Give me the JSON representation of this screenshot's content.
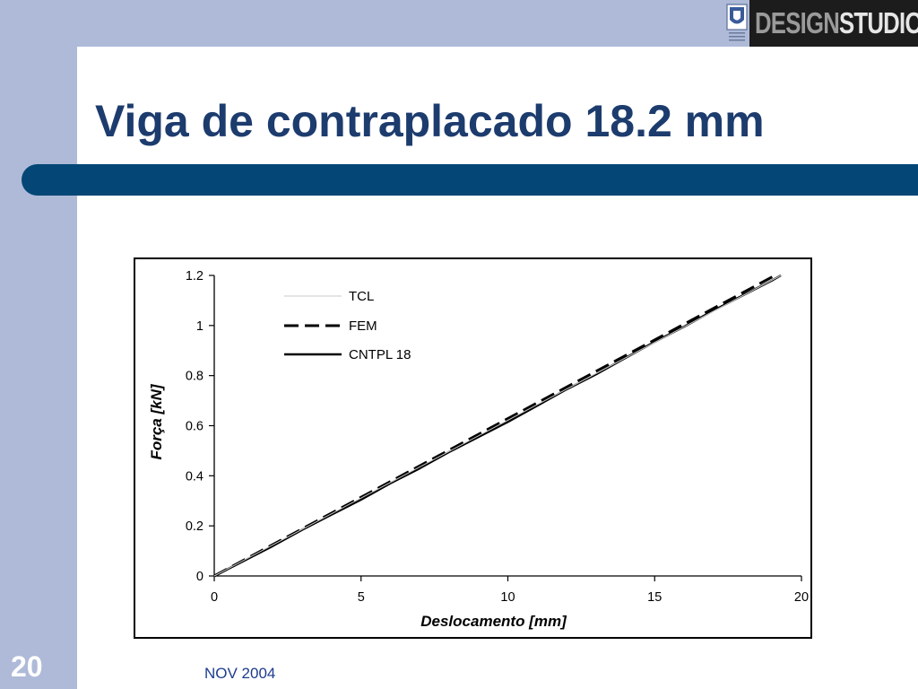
{
  "slide": {
    "title": "Viga de contraplacado 18.2 mm",
    "page_number": "20",
    "footer_date": "NOV 2004",
    "colors": {
      "band": "#aebad8",
      "title_bar": "#044776",
      "title_text": "#1d3c6e"
    }
  },
  "logo": {
    "part1": "DESIGN",
    "part2": "STUDIO",
    "seal_icon": "university-seal-icon"
  },
  "chart_data": {
    "type": "line",
    "xlabel": "Deslocamento [mm]",
    "ylabel": "Força [kN]",
    "xlim": [
      0,
      20
    ],
    "ylim": [
      0,
      1.2
    ],
    "xticks": [
      "0",
      "5",
      "10",
      "15",
      "20"
    ],
    "yticks": [
      "0",
      "0.2",
      "0.4",
      "0.6",
      "0.8",
      "1",
      "1.2"
    ],
    "grid": false,
    "legend_position": "top-left",
    "series": [
      {
        "name": "TCL",
        "style": "thin-solid",
        "color": "#c8c8c8",
        "x": [
          0,
          19.3
        ],
        "y": [
          0,
          1.2
        ]
      },
      {
        "name": "FEM",
        "style": "dashed",
        "color": "#000000",
        "x": [
          0,
          19.1
        ],
        "y": [
          0,
          1.2
        ]
      },
      {
        "name": "CNTPL 18",
        "style": "solid",
        "color": "#000000",
        "x": [
          0,
          1,
          2,
          3,
          4,
          5,
          6,
          7,
          8,
          9,
          10,
          11,
          12,
          13,
          14,
          15,
          16,
          17,
          18,
          19,
          19.3
        ],
        "y": [
          0,
          0.06,
          0.12,
          0.185,
          0.245,
          0.305,
          0.37,
          0.43,
          0.495,
          0.555,
          0.615,
          0.68,
          0.745,
          0.805,
          0.87,
          0.935,
          0.995,
          1.06,
          1.12,
          1.18,
          1.2
        ]
      }
    ]
  }
}
